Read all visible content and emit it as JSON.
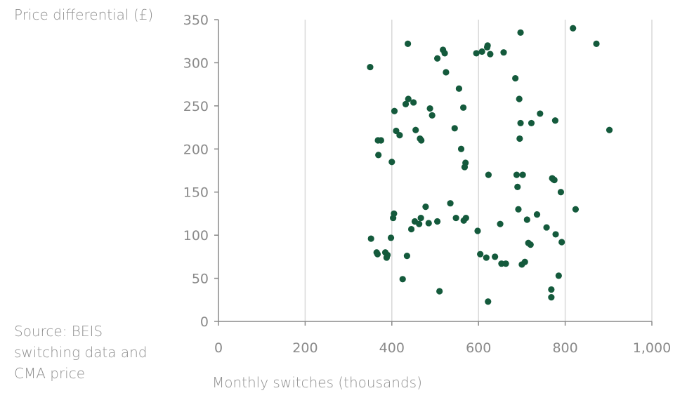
{
  "chart_data": {
    "type": "scatter",
    "ylabel": "Price differential (£)",
    "xlabel": "Monthly switches (thousands)",
    "source": "Source: BEIS switching data and CMA price",
    "xlim": [
      0,
      1000
    ],
    "ylim": [
      0,
      350
    ],
    "x_ticks": [
      0,
      200,
      400,
      600,
      800,
      1000
    ],
    "x_tick_labels": [
      "0",
      "200",
      "400",
      "600",
      "800",
      "1,000"
    ],
    "y_ticks": [
      0,
      50,
      100,
      150,
      200,
      250,
      300,
      350
    ],
    "y_tick_labels": [
      "0",
      "50",
      "100",
      "150",
      "200",
      "250",
      "300",
      "350"
    ],
    "grid": "vertical",
    "marker_color": "#145a3c",
    "gridline_color": "#d9d9d9",
    "axis_color": "#8a8a8a",
    "points": [
      [
        350,
        295
      ],
      [
        352,
        96
      ],
      [
        365,
        80
      ],
      [
        367,
        78
      ],
      [
        368,
        210
      ],
      [
        369,
        193
      ],
      [
        375,
        210
      ],
      [
        385,
        80
      ],
      [
        388,
        74
      ],
      [
        390,
        77
      ],
      [
        398,
        97
      ],
      [
        400,
        185
      ],
      [
        403,
        120
      ],
      [
        405,
        125
      ],
      [
        406,
        244
      ],
      [
        410,
        221
      ],
      [
        418,
        216
      ],
      [
        425,
        49
      ],
      [
        432,
        252
      ],
      [
        435,
        76
      ],
      [
        437,
        322
      ],
      [
        438,
        258
      ],
      [
        445,
        107
      ],
      [
        450,
        254
      ],
      [
        453,
        116
      ],
      [
        455,
        222
      ],
      [
        463,
        113
      ],
      [
        465,
        212
      ],
      [
        467,
        120
      ],
      [
        468,
        210
      ],
      [
        478,
        133
      ],
      [
        485,
        114
      ],
      [
        488,
        247
      ],
      [
        493,
        239
      ],
      [
        505,
        305
      ],
      [
        505,
        116
      ],
      [
        510,
        35
      ],
      [
        518,
        315
      ],
      [
        522,
        311
      ],
      [
        525,
        289
      ],
      [
        535,
        137
      ],
      [
        545,
        224
      ],
      [
        548,
        120
      ],
      [
        555,
        270
      ],
      [
        560,
        200
      ],
      [
        565,
        248
      ],
      [
        566,
        117
      ],
      [
        568,
        179
      ],
      [
        570,
        184
      ],
      [
        571,
        120
      ],
      [
        595,
        311
      ],
      [
        598,
        105
      ],
      [
        604,
        78
      ],
      [
        608,
        313
      ],
      [
        618,
        74
      ],
      [
        620,
        318
      ],
      [
        621,
        320
      ],
      [
        622,
        23
      ],
      [
        623,
        170
      ],
      [
        627,
        310
      ],
      [
        638,
        75
      ],
      [
        650,
        113
      ],
      [
        653,
        67
      ],
      [
        658,
        312
      ],
      [
        663,
        67
      ],
      [
        685,
        282
      ],
      [
        688,
        170
      ],
      [
        690,
        156
      ],
      [
        692,
        130
      ],
      [
        694,
        258
      ],
      [
        695,
        212
      ],
      [
        697,
        230
      ],
      [
        697,
        335
      ],
      [
        700,
        66
      ],
      [
        702,
        170
      ],
      [
        707,
        69
      ],
      [
        712,
        118
      ],
      [
        715,
        91
      ],
      [
        720,
        89
      ],
      [
        722,
        230
      ],
      [
        735,
        124
      ],
      [
        742,
        241
      ],
      [
        757,
        109
      ],
      [
        768,
        37
      ],
      [
        768,
        28
      ],
      [
        770,
        166
      ],
      [
        772,
        165
      ],
      [
        775,
        164
      ],
      [
        777,
        233
      ],
      [
        778,
        101
      ],
      [
        785,
        53
      ],
      [
        790,
        150
      ],
      [
        792,
        92
      ],
      [
        818,
        340
      ],
      [
        824,
        130
      ],
      [
        872,
        322
      ],
      [
        902,
        222
      ]
    ]
  }
}
